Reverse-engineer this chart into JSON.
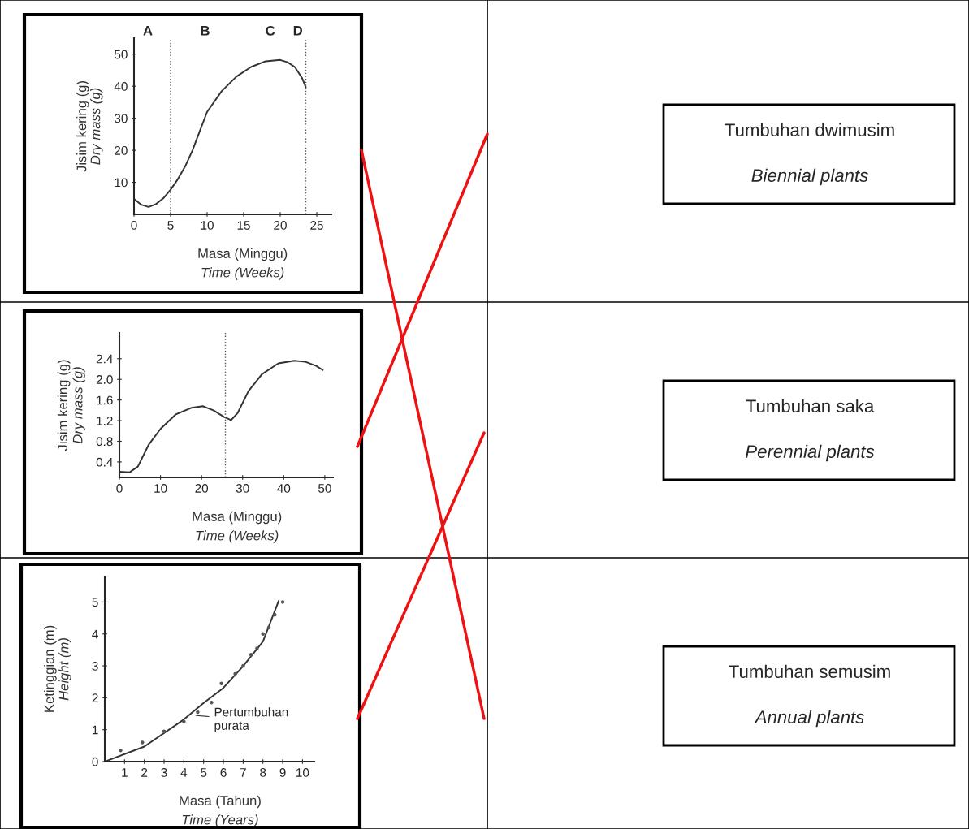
{
  "chart_data": [
    {
      "type": "line",
      "xlabel": "Masa (Minggu)\nTime (Weeks)",
      "ylabel": "Jisim kering (g)\nDry mass (g)",
      "xlim": [
        0,
        27
      ],
      "ylim": [
        0,
        55
      ],
      "xticks": [
        0,
        5,
        10,
        15,
        20,
        25
      ],
      "yticks": [
        10,
        20,
        30,
        40,
        50
      ],
      "series": [
        {
          "color": "#333333",
          "x": [
            0,
            1,
            2,
            3,
            4,
            5,
            6,
            7,
            8,
            9,
            10,
            12,
            14,
            16,
            18,
            20,
            21,
            22,
            23,
            23.5
          ],
          "values": [
            4.8,
            3,
            2.3,
            3.2,
            5,
            7.7,
            11,
            15,
            20,
            26,
            32,
            38.5,
            43,
            46,
            47.8,
            48.2,
            47.5,
            46,
            42.5,
            39.7
          ]
        }
      ],
      "ref_lines": [
        {
          "axis": "x",
          "value": 5,
          "line_style": "dotted"
        },
        {
          "axis": "x",
          "value": 23.5,
          "line_style": "dotted"
        }
      ],
      "annotations": [
        "A",
        "B",
        "C",
        "D"
      ],
      "grid": false,
      "legend": false
    },
    {
      "type": "line",
      "xlabel": "Masa (Minggu)\nTime (Weeks)",
      "ylabel": "Jisim kering (g)\nDry mass (g)",
      "xlim": [
        0,
        52
      ],
      "ylim": [
        0.1,
        2.9
      ],
      "xticks": [
        0,
        10,
        20,
        30,
        40,
        50
      ],
      "yticks": [
        0.4,
        0.8,
        1.2,
        1.6,
        {
          "value": 2.0,
          "label": "2.0"
        },
        2.4
      ],
      "series": [
        {
          "color": "#333333",
          "x": [
            0,
            2.5,
            4.5,
            7.1,
            10,
            13.7,
            17.6,
            20.3,
            22.9,
            25.5,
            27.2,
            28.8,
            31.4,
            34.7,
            38.7,
            42.6,
            45.3,
            47.9,
            49.5
          ],
          "values": [
            0.21,
            0.2,
            0.31,
            0.73,
            1.04,
            1.32,
            1.45,
            1.48,
            1.4,
            1.27,
            1.21,
            1.35,
            1.77,
            2.1,
            2.31,
            2.36,
            2.34,
            2.26,
            2.18
          ]
        }
      ],
      "ref_lines": [
        {
          "axis": "x",
          "value": 25.8,
          "line_style": "dotted"
        }
      ],
      "grid": false,
      "legend": false
    },
    {
      "type": "line",
      "xlabel": "Masa (Tahun)\nTime (Years)",
      "ylabel": "Ketinggian (m)\nHeight (m)",
      "xlim": [
        0,
        10.6
      ],
      "ylim": [
        0,
        5.8
      ],
      "xticks": [
        1,
        2,
        3,
        4,
        5,
        6,
        7,
        8,
        9,
        10
      ],
      "yticks": [
        0,
        1,
        2,
        3,
        4,
        5
      ],
      "series": [
        {
          "color": "#333333",
          "x": [
            0,
            2,
            4,
            5,
            6,
            7,
            8,
            8.8
          ],
          "values": [
            0,
            0.47,
            1.32,
            1.84,
            2.31,
            2.99,
            3.76,
            5.04
          ]
        },
        {
          "type": "scatter",
          "color": "#555555",
          "x": [
            0.8,
            1.9,
            3,
            4,
            4.7,
            5.4,
            5.9,
            6.6,
            7,
            7.4,
            7.7,
            8,
            8.3,
            8.6,
            9
          ],
          "values": [
            0.35,
            0.6,
            0.95,
            1.25,
            1.55,
            1.85,
            2.45,
            2.75,
            3,
            3.35,
            3.55,
            4,
            4.2,
            4.6,
            5
          ]
        }
      ],
      "annotations": [
        {
          "text": "Pertumbuhan\npurata",
          "x": 4.5,
          "y": 1.45
        }
      ],
      "grid": false,
      "legend": false
    },
    {
      "type": "other",
      "annotations": [
        "Tumbuhan dwimusim\nBiennial plants",
        "Tumbuhan saka\nPerennial plants",
        "Tumbuhan semusim\nAnnual plants"
      ]
    }
  ]
}
